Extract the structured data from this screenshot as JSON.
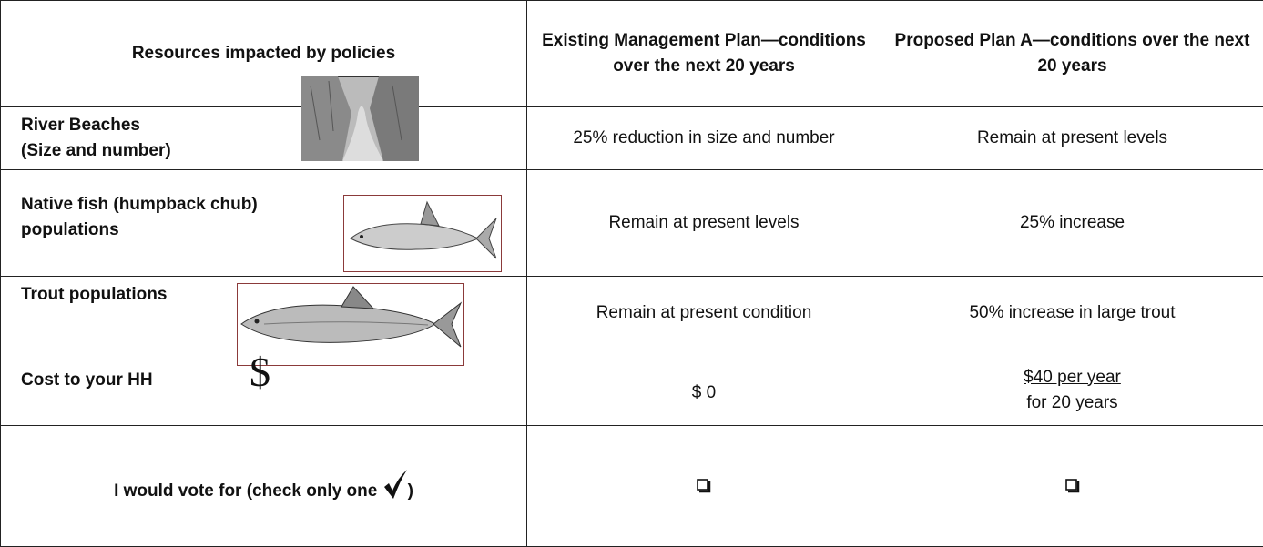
{
  "table": {
    "header": [
      "Resources impacted by policies",
      "Existing Management Plan—conditions over the next 20 years",
      "Proposed Plan A—conditions over the next 20 years"
    ],
    "rows": [
      {
        "resource": "River Beaches\n(Size and number)",
        "existing": "25% reduction in size and number",
        "proposed": "Remain at present levels"
      },
      {
        "resource": "Native fish (humpback chub)\npopulations",
        "existing": "Remain at present levels",
        "proposed": "25% increase"
      },
      {
        "resource": "Trout populations",
        "existing": "Remain at present condition",
        "proposed": "50% increase in large trout"
      },
      {
        "resource": "Cost to your HH",
        "icon": "$",
        "existing": "$ 0",
        "proposed": {
          "main": "$40 per year",
          "note": "for 20 years"
        }
      }
    ],
    "vote": {
      "label_start": "I would vote for (check only one",
      "label_end": ")"
    }
  }
}
